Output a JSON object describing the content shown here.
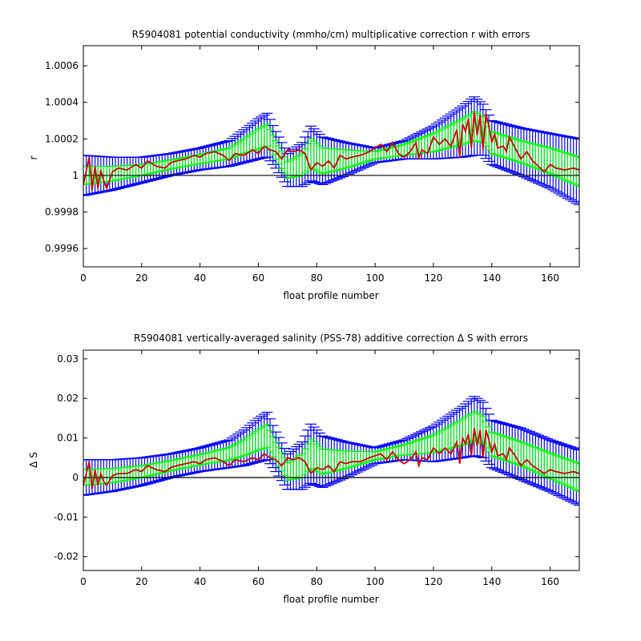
{
  "chart_data": [
    {
      "type": "line",
      "title": "R5904081 potential conductivity (mmho/cm) multiplicative correction r with errors",
      "xlabel": "float profile number",
      "ylabel": "r",
      "xlim": [
        0,
        170
      ],
      "ylim": [
        0.9995,
        1.00071
      ],
      "xticks": [
        0,
        20,
        40,
        60,
        80,
        100,
        120,
        140,
        160
      ],
      "yticks": [
        0.9996,
        0.9998,
        1,
        1.0002,
        1.0004,
        1.0006
      ],
      "ytick_labels": [
        "0.9996",
        "0.9998",
        "1",
        "1.0002",
        "1.0004",
        "1.0006"
      ],
      "reference_line": 1,
      "grid": false,
      "series": [
        {
          "role": "fit_with_large_errors",
          "color": "#0000ff",
          "x": [
            0,
            10,
            20,
            30,
            40,
            50,
            55,
            60,
            63,
            66,
            70,
            75,
            78,
            82,
            90,
            100,
            110,
            120,
            130,
            134,
            137,
            140,
            150,
            160,
            170
          ],
          "center": [
            1,
            1.00001,
            1.00003,
            1.00006,
            1.00009,
            1.00012,
            1.00016,
            1.0002,
            1.00022,
            1.00014,
            1.00003,
            1.00006,
            1.00012,
            1.00008,
            1.00009,
            1.00011,
            1.00014,
            1.00018,
            1.00024,
            1.00027,
            1.00025,
            1.00018,
            1.00013,
            1.00008,
            1.00002
          ],
          "error": [
            0.00011,
            9e-05,
            7e-05,
            6e-05,
            6e-05,
            7e-05,
            9e-05,
            0.00011,
            0.00012,
            0.0001,
            9e-05,
            0.00012,
            0.00015,
            0.00013,
            9e-05,
            4e-05,
            5e-05,
            9e-05,
            0.00014,
            0.00016,
            0.00014,
            0.00012,
            0.00013,
            0.00015,
            0.00018
          ]
        },
        {
          "role": "fit_with_small_errors",
          "color": "#00ff00",
          "x": [
            0,
            10,
            20,
            30,
            40,
            50,
            55,
            60,
            63,
            66,
            70,
            75,
            78,
            82,
            90,
            100,
            110,
            120,
            130,
            134,
            137,
            140,
            150,
            160,
            170
          ],
          "center": [
            1,
            1.00001,
            1.00003,
            1.00006,
            1.00009,
            1.00012,
            1.00016,
            1.0002,
            1.00022,
            1.00014,
            1.00003,
            1.00006,
            1.00012,
            1.00008,
            1.00009,
            1.00011,
            1.00014,
            1.00018,
            1.00024,
            1.00027,
            1.00025,
            1.00018,
            1.00013,
            1.00008,
            1.00002
          ],
          "error": [
            5e-05,
            4e-05,
            3e-05,
            2.5e-05,
            2.5e-05,
            3e-05,
            4e-05,
            5.5e-05,
            6e-05,
            5e-05,
            4.5e-05,
            6e-05,
            8e-05,
            7e-05,
            5e-05,
            2e-05,
            3e-05,
            5e-05,
            7e-05,
            8e-05,
            7e-05,
            6e-05,
            6e-05,
            7e-05,
            8e-05
          ]
        },
        {
          "role": "profile_estimate",
          "color": "#cc0000",
          "x": [
            0,
            2,
            3,
            4,
            5,
            6,
            7,
            8,
            10,
            12,
            15,
            18,
            20,
            22,
            25,
            28,
            30,
            32,
            35,
            38,
            40,
            42,
            45,
            48,
            50,
            52,
            55,
            58,
            60,
            62,
            64,
            66,
            68,
            70,
            72,
            74,
            76,
            78,
            80,
            82,
            84,
            86,
            88,
            90,
            92,
            95,
            98,
            100,
            102,
            104,
            106,
            108,
            110,
            112,
            114,
            115,
            116,
            118,
            120,
            122,
            124,
            126,
            128,
            129,
            130,
            131,
            132,
            133,
            134,
            135,
            136,
            137,
            138,
            139,
            140,
            141,
            142,
            144,
            145,
            146,
            148,
            150,
            152,
            154,
            156,
            158,
            160,
            162,
            165,
            168,
            170
          ],
          "y": [
            0.99995,
            1.0001,
            0.99992,
            1.00005,
            0.99993,
            1.00003,
            0.99997,
            0.99993,
            1.00002,
            1.00004,
            1.00003,
            1.00006,
            1.00004,
            1.00008,
            1.00005,
            1.00004,
            1.00007,
            1.00008,
            1.00009,
            1.00011,
            1.0001,
            1.00012,
            1.00013,
            1.00011,
            1.00008,
            1.00012,
            1.00011,
            1.00014,
            1.00012,
            1.00016,
            1.00014,
            1.00013,
            1.00009,
            1.00014,
            1.00013,
            1.00014,
            1.00012,
            1.00003,
            1.00007,
            1.00005,
            1.00008,
            1.00004,
            1.00011,
            1.00009,
            1.0001,
            1.00011,
            1.00013,
            1.00015,
            1.00017,
            1.00013,
            1.00018,
            1.00012,
            1.0001,
            1.00013,
            1.00018,
            1.00009,
            1.00014,
            1.00012,
            1.00021,
            1.00017,
            1.0002,
            1.00016,
            1.00025,
            1.0001,
            1.00028,
            1.00024,
            1.00031,
            1.00015,
            1.00035,
            1.00022,
            1.00033,
            1.00014,
            1.00034,
            1.00027,
            1.00018,
            1.00023,
            1.00015,
            1.00016,
            1.00013,
            1.00021,
            1.00015,
            1.00009,
            1.00013,
            1.00008,
            1.00005,
            1.00002,
            1.00006,
            1.00004,
            1.00003,
            1.00004,
            1.00003
          ]
        }
      ]
    },
    {
      "type": "line",
      "title": "R5904081 vertically-averaged salinity (PSS-78) additive correction Δ S with errors",
      "xlabel": "float profile number",
      "ylabel": "Δ S",
      "xlim": [
        0,
        170
      ],
      "ylim": [
        -0.0235,
        0.0322
      ],
      "xticks": [
        0,
        20,
        40,
        60,
        80,
        100,
        120,
        140,
        160
      ],
      "yticks": [
        -0.02,
        -0.01,
        0,
        0.01,
        0.02,
        0.03
      ],
      "ytick_labels": [
        "-0.02",
        "-0.01",
        "0",
        "0.01",
        "0.02",
        "0.03"
      ],
      "reference_line": 0,
      "grid": false,
      "series": [
        {
          "role": "fit_with_large_errors",
          "color": "#0000ff",
          "x": [
            0,
            10,
            20,
            30,
            40,
            50,
            55,
            60,
            63,
            66,
            70,
            75,
            78,
            82,
            90,
            100,
            110,
            120,
            130,
            134,
            137,
            140,
            150,
            160,
            170
          ],
          "center": [
            0,
            0.0005,
            0.0015,
            0.003,
            0.0045,
            0.006,
            0.0075,
            0.0095,
            0.0105,
            0.0065,
            0.0015,
            0.003,
            0.006,
            0.004,
            0.0045,
            0.0055,
            0.007,
            0.0085,
            0.0115,
            0.013,
            0.012,
            0.0085,
            0.006,
            0.003,
            0
          ],
          "error": [
            0.0045,
            0.004,
            0.0035,
            0.003,
            0.003,
            0.0035,
            0.0045,
            0.0055,
            0.006,
            0.005,
            0.0045,
            0.006,
            0.0075,
            0.0065,
            0.0045,
            0.002,
            0.0025,
            0.0045,
            0.0065,
            0.0075,
            0.007,
            0.006,
            0.0065,
            0.0065,
            0.007
          ]
        },
        {
          "role": "fit_with_small_errors",
          "color": "#00ff00",
          "x": [
            0,
            10,
            20,
            30,
            40,
            50,
            55,
            60,
            63,
            66,
            70,
            75,
            78,
            82,
            90,
            100,
            110,
            120,
            130,
            134,
            137,
            140,
            150,
            160,
            170
          ],
          "center": [
            0,
            0.0005,
            0.0015,
            0.003,
            0.0045,
            0.006,
            0.0075,
            0.0095,
            0.0105,
            0.0065,
            0.0015,
            0.003,
            0.006,
            0.004,
            0.0045,
            0.0055,
            0.007,
            0.0085,
            0.0115,
            0.013,
            0.012,
            0.0085,
            0.006,
            0.003,
            0
          ],
          "error": [
            0.002,
            0.0018,
            0.0015,
            0.0013,
            0.0013,
            0.0016,
            0.002,
            0.0026,
            0.0029,
            0.0024,
            0.0022,
            0.003,
            0.0037,
            0.0032,
            0.0022,
            0.001,
            0.0013,
            0.0022,
            0.0033,
            0.0037,
            0.0035,
            0.003,
            0.003,
            0.0032,
            0.0035
          ]
        },
        {
          "role": "profile_estimate",
          "color": "#cc0000",
          "x": [
            0,
            2,
            3,
            4,
            5,
            6,
            7,
            8,
            10,
            12,
            15,
            18,
            20,
            22,
            25,
            28,
            30,
            32,
            35,
            38,
            40,
            42,
            45,
            48,
            50,
            52,
            55,
            58,
            60,
            62,
            64,
            66,
            68,
            70,
            72,
            74,
            76,
            78,
            80,
            82,
            84,
            86,
            88,
            90,
            92,
            95,
            98,
            100,
            102,
            104,
            106,
            108,
            110,
            112,
            114,
            115,
            116,
            118,
            120,
            122,
            124,
            126,
            128,
            129,
            130,
            131,
            132,
            133,
            134,
            135,
            136,
            137,
            138,
            139,
            140,
            141,
            142,
            144,
            145,
            146,
            148,
            150,
            152,
            154,
            156,
            158,
            160,
            162,
            165,
            168,
            170
          ],
          "y": [
            -0.002,
            0.004,
            -0.003,
            0.002,
            -0.002,
            0.001,
            -0.001,
            -0.002,
            0.0005,
            0.001,
            0.001,
            0.002,
            0.0015,
            0.003,
            0.002,
            0.0015,
            0.0025,
            0.003,
            0.0035,
            0.004,
            0.0035,
            0.0045,
            0.005,
            0.004,
            0.003,
            0.0045,
            0.004,
            0.005,
            0.0045,
            0.006,
            0.005,
            0.0045,
            0.003,
            0.005,
            0.0045,
            0.005,
            0.004,
            0.001,
            0.0025,
            0.002,
            0.003,
            0.0015,
            0.004,
            0.0035,
            0.004,
            0.004,
            0.005,
            0.0055,
            0.006,
            0.0045,
            0.0065,
            0.0045,
            0.0035,
            0.0045,
            0.0065,
            0.003,
            0.005,
            0.0045,
            0.0075,
            0.006,
            0.0075,
            0.006,
            0.009,
            0.0035,
            0.01,
            0.0085,
            0.011,
            0.0055,
            0.0125,
            0.008,
            0.012,
            0.005,
            0.012,
            0.0095,
            0.0065,
            0.0085,
            0.0055,
            0.006,
            0.0045,
            0.0075,
            0.0055,
            0.003,
            0.0045,
            0.003,
            0.002,
            0.001,
            0.002,
            0.0015,
            0.001,
            0.0015,
            0.001
          ]
        }
      ]
    }
  ]
}
